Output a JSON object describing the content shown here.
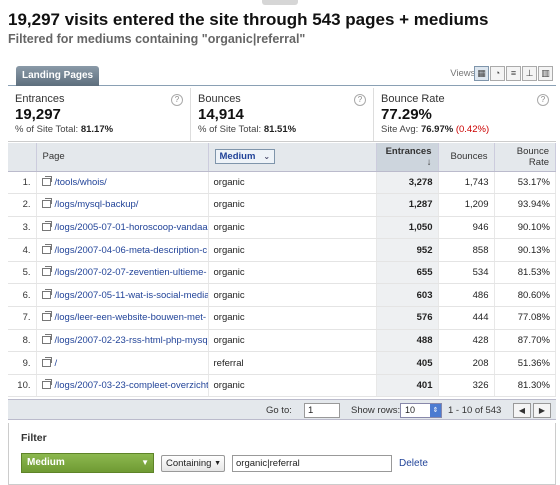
{
  "header": {
    "title": "19,297 visits entered the site through 543 pages + mediums",
    "subtitle": "Filtered for mediums containing \"organic|referral\""
  },
  "tab": {
    "label": "Landing Pages"
  },
  "views": {
    "label": "Views:",
    "icons": [
      "table-view-icon",
      "pie-view-icon",
      "performance-view-icon",
      "comparison-view-icon",
      "pivot-view-icon"
    ]
  },
  "summary": [
    {
      "name": "Entrances",
      "value": "19,297",
      "sub_label": "% of Site Total:",
      "sub_value": "81.17%",
      "sub_extra": ""
    },
    {
      "name": "Bounces",
      "value": "14,914",
      "sub_label": "% of Site Total:",
      "sub_value": "81.51%",
      "sub_extra": ""
    },
    {
      "name": "Bounce Rate",
      "value": "77.29%",
      "sub_label": "Site Avg:",
      "sub_value": "76.97%",
      "sub_extra": "(0.42%)"
    }
  ],
  "table": {
    "headers": {
      "page": "Page",
      "medium": "Medium",
      "entrances": "Entrances",
      "bounces": "Bounces",
      "bounce_rate": "Bounce Rate"
    },
    "rows": [
      {
        "idx": "1.",
        "page": "/tools/whois/",
        "medium": "organic",
        "entrances": "3,278",
        "bounces": "1,743",
        "rate": "53.17%"
      },
      {
        "idx": "2.",
        "page": "/logs/mysql-backup/",
        "medium": "organic",
        "entrances": "1,287",
        "bounces": "1,209",
        "rate": "93.94%"
      },
      {
        "idx": "3.",
        "page": "/logs/2005-07-01-horoscoop-vandaa",
        "medium": "organic",
        "entrances": "1,050",
        "bounces": "946",
        "rate": "90.10%"
      },
      {
        "idx": "4.",
        "page": "/logs/2007-04-06-meta-description-c",
        "medium": "organic",
        "entrances": "952",
        "bounces": "858",
        "rate": "90.13%"
      },
      {
        "idx": "5.",
        "page": "/logs/2007-02-07-zeventien-ultieme-",
        "medium": "organic",
        "entrances": "655",
        "bounces": "534",
        "rate": "81.53%"
      },
      {
        "idx": "6.",
        "page": "/logs/2007-05-11-wat-is-social-media",
        "medium": "organic",
        "entrances": "603",
        "bounces": "486",
        "rate": "80.60%"
      },
      {
        "idx": "7.",
        "page": "/logs/leer-een-website-bouwen-met-",
        "medium": "organic",
        "entrances": "576",
        "bounces": "444",
        "rate": "77.08%"
      },
      {
        "idx": "8.",
        "page": "/logs/2007-02-23-rss-html-php-mysq",
        "medium": "organic",
        "entrances": "488",
        "bounces": "428",
        "rate": "87.70%"
      },
      {
        "idx": "9.",
        "page": "/",
        "medium": "referral",
        "entrances": "405",
        "bounces": "208",
        "rate": "51.36%"
      },
      {
        "idx": "10.",
        "page": "/logs/2007-03-23-compleet-overzicht",
        "medium": "organic",
        "entrances": "401",
        "bounces": "326",
        "rate": "81.30%"
      }
    ]
  },
  "pager": {
    "goto_label": "Go to:",
    "goto_value": "1",
    "rows_label": "Show rows:",
    "rows_value": "10",
    "range": "1 - 10 of 543"
  },
  "filter": {
    "title": "Filter",
    "dimension": "Medium",
    "condition": "Containing",
    "value": "organic|referral",
    "delete_label": "Delete"
  }
}
